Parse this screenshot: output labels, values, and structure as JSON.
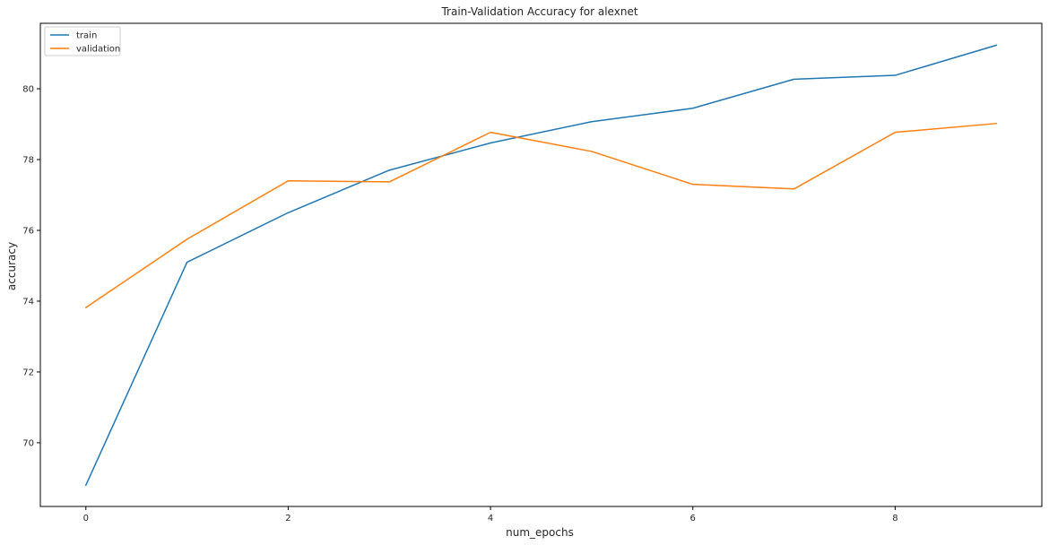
{
  "chart_data": {
    "type": "line",
    "title": "Train-Validation Accuracy for alexnet",
    "xlabel": "num_epochs",
    "ylabel": "accuracy",
    "x": [
      0,
      1,
      2,
      3,
      4,
      5,
      6,
      7,
      8,
      9
    ],
    "series": [
      {
        "name": "train",
        "color": "#1f77b4",
        "values": [
          68.8,
          75.1,
          76.5,
          77.7,
          78.47,
          79.07,
          79.45,
          80.27,
          80.38,
          81.23
        ]
      },
      {
        "name": "validation",
        "color": "#ff7f0e",
        "values": [
          73.82,
          75.75,
          77.4,
          77.37,
          78.77,
          78.23,
          77.3,
          77.17,
          78.77,
          79.02
        ]
      }
    ],
    "xlim": [
      -0.45,
      9.45
    ],
    "ylim": [
      68.2,
      81.85
    ],
    "xticks": [
      0,
      2,
      4,
      6,
      8
    ],
    "yticks": [
      70,
      72,
      74,
      76,
      78,
      80
    ],
    "grid": false,
    "legend": "top-left"
  }
}
